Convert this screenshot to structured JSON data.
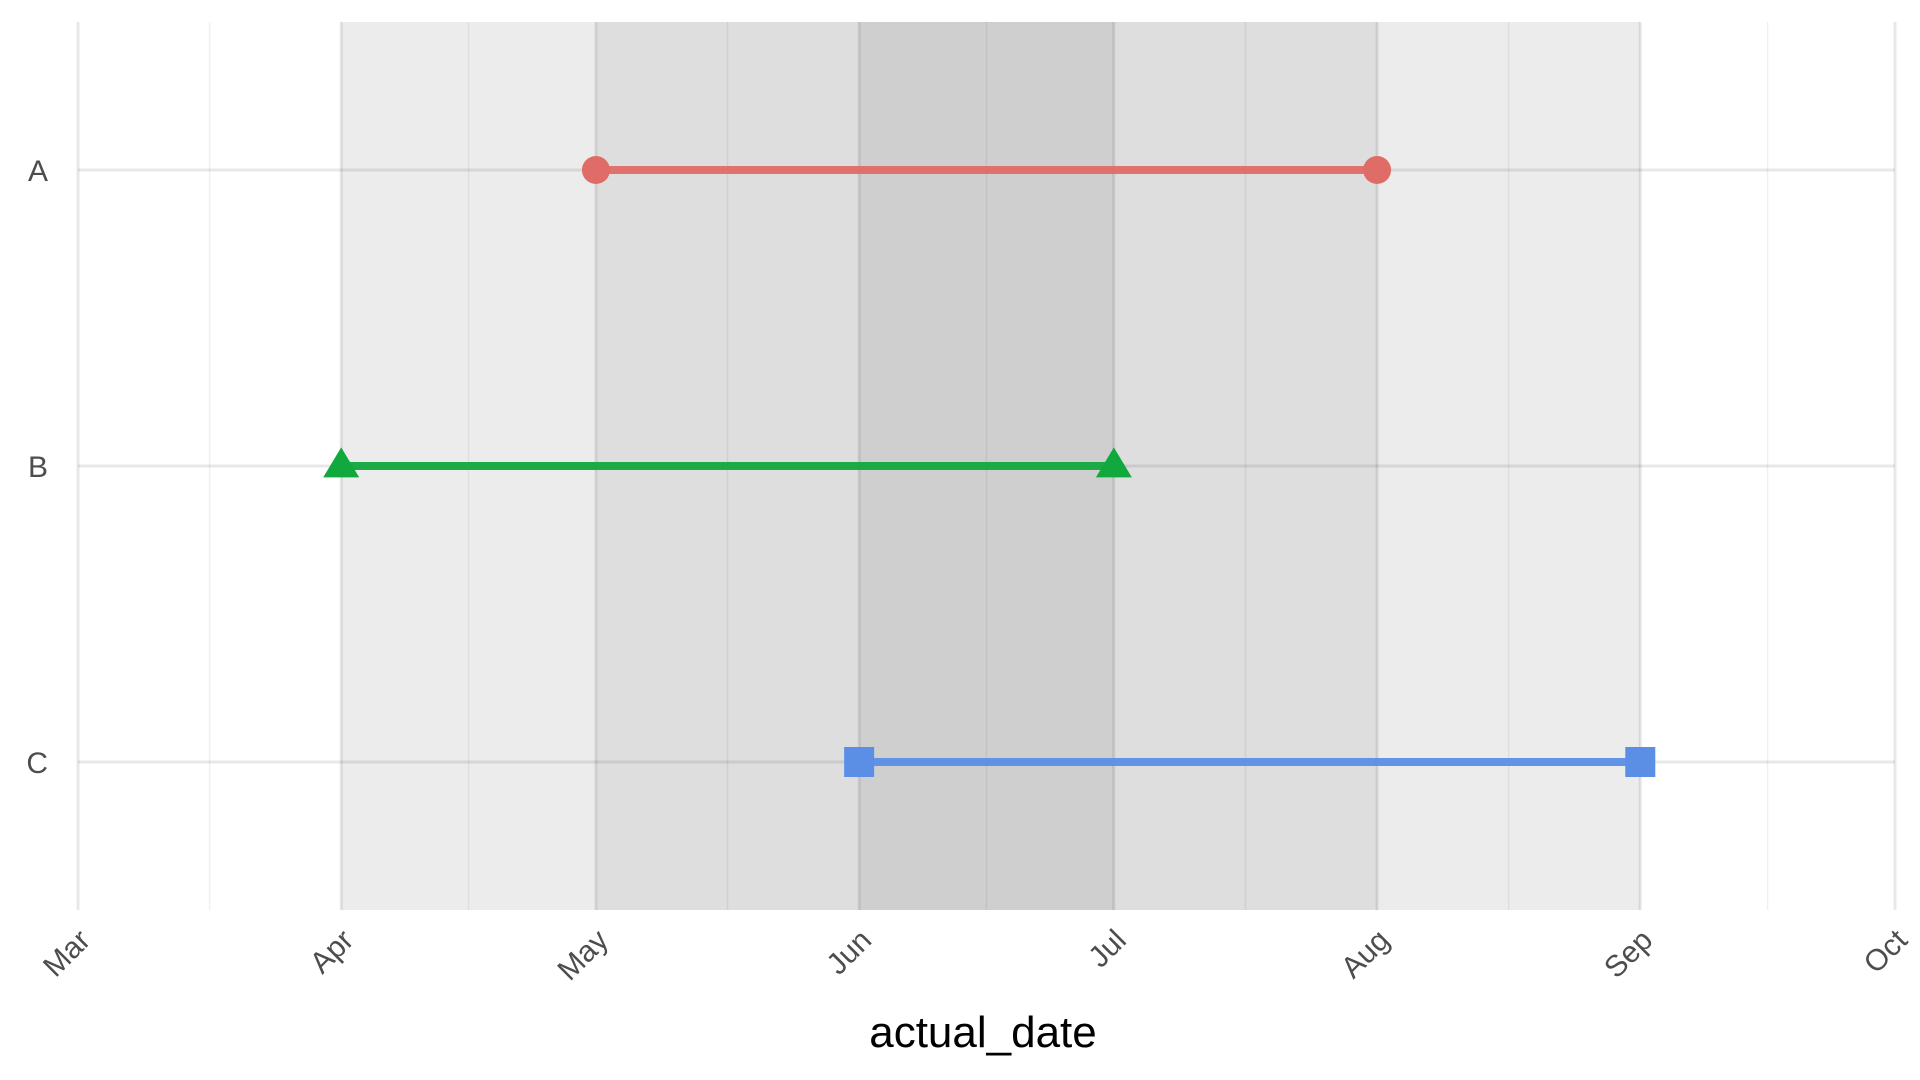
{
  "chart_data": {
    "type": "segment",
    "title": "",
    "xlabel": "actual_date",
    "ylabel": "",
    "xlim": [
      "2017-03-01",
      "2017-10-01"
    ],
    "x_ticks": [
      {
        "date": "2017-03-01",
        "label": "Mar"
      },
      {
        "date": "2017-04-01",
        "label": "Apr"
      },
      {
        "date": "2017-05-01",
        "label": "May"
      },
      {
        "date": "2017-06-01",
        "label": "Jun"
      },
      {
        "date": "2017-07-01",
        "label": "Jul"
      },
      {
        "date": "2017-08-01",
        "label": "Aug"
      },
      {
        "date": "2017-09-01",
        "label": "Sep"
      },
      {
        "date": "2017-10-01",
        "label": "Oct"
      }
    ],
    "categories": [
      "A",
      "B",
      "C"
    ],
    "grid": true,
    "legend": "none",
    "shaded_bands": [
      {
        "start": "2017-04-01",
        "end": "2017-09-01",
        "color": "#ececec"
      },
      {
        "start": "2017-05-01",
        "end": "2017-08-01",
        "color": "#dedede"
      },
      {
        "start": "2017-06-01",
        "end": "2017-07-01",
        "color": "#cfcfcf"
      }
    ],
    "series": [
      {
        "category": "A",
        "start": "2017-05-01",
        "end": "2017-08-01",
        "shape": "circle",
        "color": "#e06c67"
      },
      {
        "category": "B",
        "start": "2017-04-01",
        "end": "2017-07-01",
        "shape": "triangle",
        "color": "#11a83e"
      },
      {
        "category": "C",
        "start": "2017-06-01",
        "end": "2017-09-01",
        "shape": "square",
        "color": "#5b8fe6"
      }
    ]
  }
}
